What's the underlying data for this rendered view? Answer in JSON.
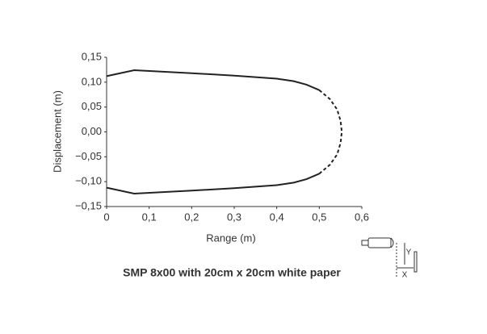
{
  "chart_data": {
    "type": "line",
    "title": "SMP 8x00 with 20cm x 20cm white paper",
    "x_label": "Range (m)",
    "y_label": "Displacement (m)",
    "annotations": [
      "Y",
      "X"
    ],
    "xlim": [
      0,
      0.6
    ],
    "ylim": [
      -0.15,
      0.15
    ],
    "xticks": [
      0,
      {
        "value": 0.1,
        "label": "0,1"
      },
      {
        "value": 0.2,
        "label": "0,2"
      },
      {
        "value": 0.3,
        "label": "0,3"
      },
      {
        "value": 0.4,
        "label": "0,4"
      },
      {
        "value": 0.5,
        "label": "0,5"
      },
      {
        "value": 0.6,
        "label": "0,6"
      }
    ],
    "yticks": [
      {
        "value": -0.15,
        "label": "−0,15"
      },
      {
        "value": -0.1,
        "label": "−0,10"
      },
      {
        "value": -0.05,
        "label": "−0,05"
      },
      {
        "value": 0,
        "label": "0,00"
      },
      {
        "value": 0.05,
        "label": "0,05"
      },
      {
        "value": 0.1,
        "label": "0,10"
      },
      {
        "value": 0.15,
        "label": "0,15"
      }
    ],
    "grid": false,
    "series": [
      {
        "color": "#222222",
        "line_style": "solid",
        "x": [
          0,
          0.065,
          0.2,
          0.3,
          0.4,
          0.44,
          0.47,
          0.5
        ],
        "values": [
          0.112,
          0.124,
          0.118,
          0.113,
          0.107,
          0.102,
          0.095,
          0.084
        ]
      },
      {
        "color": "#222222",
        "line_style": "dashed",
        "x": [
          0.5,
          0.525,
          0.542,
          0.55,
          0.553,
          0.55,
          0.542,
          0.525,
          0.5
        ],
        "values": [
          0.084,
          0.066,
          0.045,
          0.022,
          0,
          -0.022,
          -0.045,
          -0.066,
          -0.084
        ]
      },
      {
        "color": "#222222",
        "line_style": "solid",
        "x": [
          0,
          0.065,
          0.2,
          0.3,
          0.4,
          0.44,
          0.47,
          0.5
        ],
        "values": [
          -0.112,
          -0.124,
          -0.118,
          -0.113,
          -0.107,
          -0.102,
          -0.095,
          -0.084
        ]
      }
    ]
  }
}
